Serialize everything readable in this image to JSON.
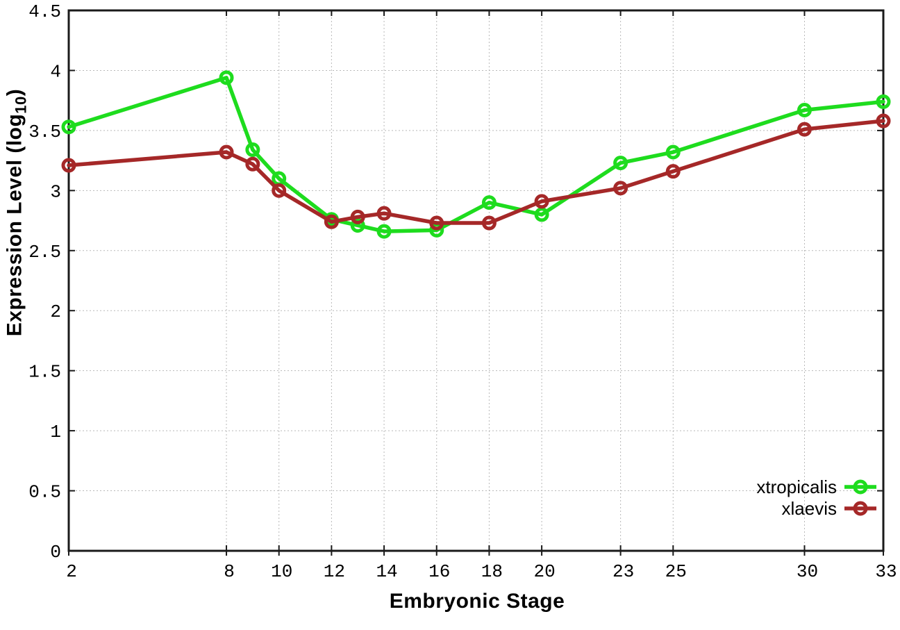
{
  "chart_data": {
    "type": "line",
    "title": "",
    "xlabel": "Embryonic Stage",
    "ylabel": "Expression Level (log10)",
    "ylabel_parts": {
      "prefix": "Expression Level (log",
      "subscript": "10",
      "suffix": ")"
    },
    "x": [
      2,
      8,
      9,
      10,
      12,
      13,
      14,
      16,
      18,
      20,
      23,
      25,
      30,
      33
    ],
    "xlim": [
      2,
      33
    ],
    "ylim": [
      0,
      4.5
    ],
    "x_tick_values": [
      2,
      8,
      10,
      12,
      14,
      16,
      18,
      20,
      23,
      25,
      30,
      33
    ],
    "x_tick_labels": [
      "2",
      "8",
      "10",
      "12",
      "14",
      "16",
      "18",
      "20",
      "23",
      "25",
      "30",
      "33"
    ],
    "y_tick_values": [
      0,
      0.5,
      1,
      1.5,
      2,
      2.5,
      3,
      3.5,
      4,
      4.5
    ],
    "y_tick_labels": [
      "0",
      "0.5",
      "1",
      "1.5",
      "2",
      "2.5",
      "3",
      "3.5",
      "4",
      "4.5"
    ],
    "grid": true,
    "legend_position": "inside-bottom-right",
    "series": [
      {
        "name": "xtropicalis",
        "color": "#1edc1e",
        "marker": "open-circle",
        "values": [
          3.53,
          3.94,
          3.34,
          3.1,
          2.76,
          2.71,
          2.66,
          2.67,
          2.9,
          2.8,
          3.23,
          3.32,
          3.67,
          3.74
        ]
      },
      {
        "name": "xlaevis",
        "color": "#a52828",
        "marker": "open-circle",
        "values": [
          3.21,
          3.32,
          3.22,
          3.0,
          2.74,
          2.78,
          2.81,
          2.73,
          2.73,
          2.91,
          3.02,
          3.16,
          3.51,
          3.58
        ]
      }
    ],
    "colors": {
      "background": "#ffffff",
      "axis": "#1a1a1a",
      "grid": "#b8b8b8",
      "text": "#000000"
    }
  }
}
